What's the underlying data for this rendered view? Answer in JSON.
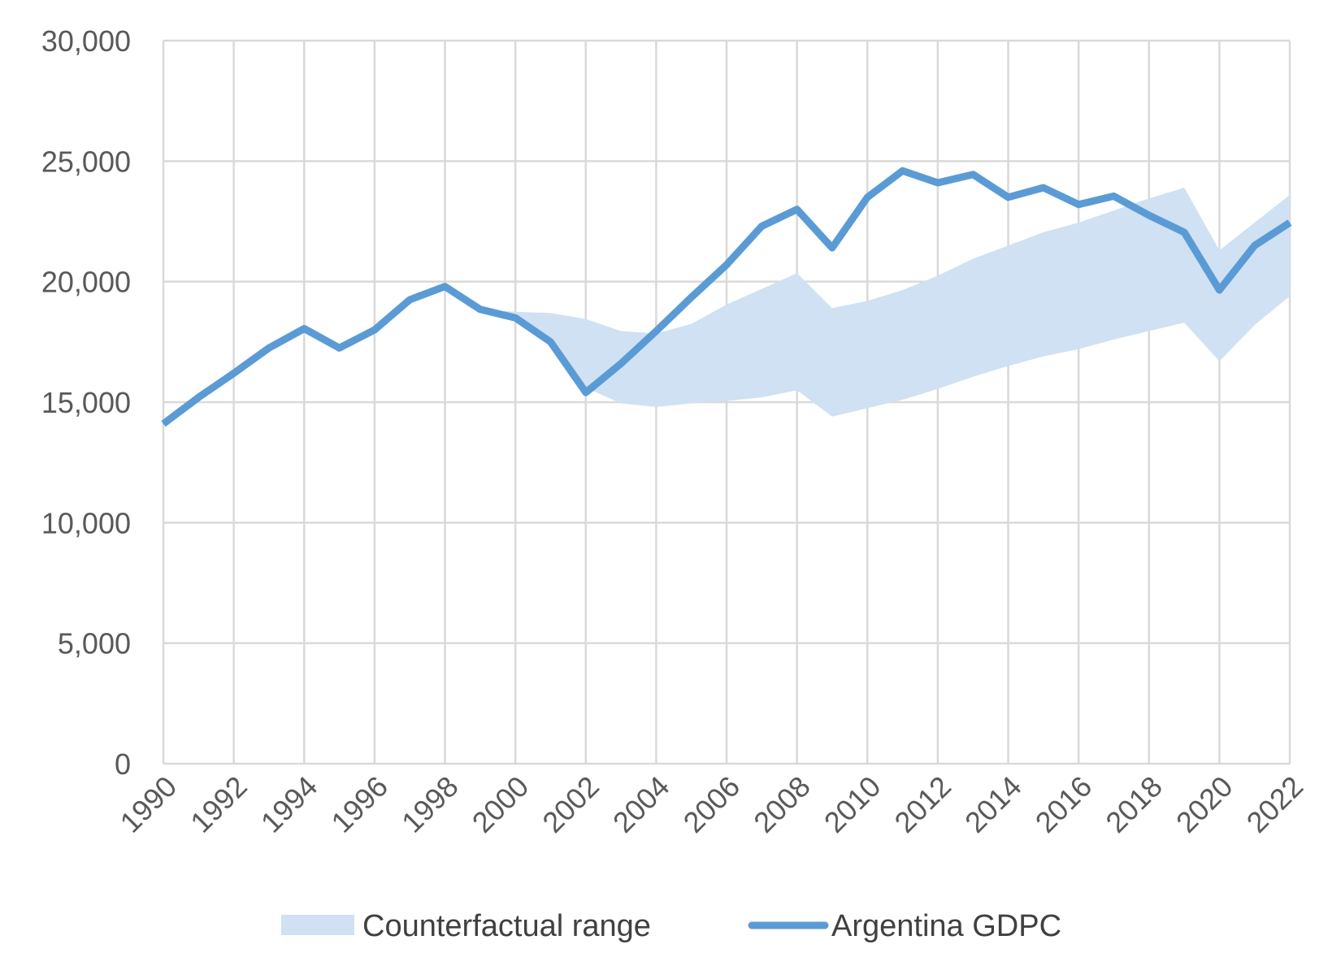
{
  "chart_data": {
    "type": "line",
    "title": "",
    "xlabel": "",
    "ylabel": "",
    "x": [
      1990,
      1991,
      1992,
      1993,
      1994,
      1995,
      1996,
      1997,
      1998,
      1999,
      2000,
      2001,
      2002,
      2003,
      2004,
      2005,
      2006,
      2007,
      2008,
      2009,
      2010,
      2011,
      2012,
      2013,
      2014,
      2015,
      2016,
      2017,
      2018,
      2019,
      2020,
      2021,
      2022
    ],
    "xticks": [
      "1990",
      "1992",
      "1994",
      "1996",
      "1998",
      "2000",
      "2002",
      "2004",
      "2006",
      "2008",
      "2010",
      "2012",
      "2014",
      "2016",
      "2018",
      "2020",
      "2022"
    ],
    "yticks": [
      "0",
      "5,000",
      "10,000",
      "15,000",
      "20,000",
      "25,000",
      "30,000"
    ],
    "ylim": [
      0,
      30000
    ],
    "grid": true,
    "legend_position": "bottom",
    "series": [
      {
        "name": "Argentina GDPC",
        "type": "line",
        "color": "#5b9bd5",
        "values": [
          14100,
          15200,
          16200,
          17250,
          18050,
          17250,
          18000,
          19250,
          19800,
          18850,
          18500,
          17500,
          15400,
          16600,
          17950,
          19350,
          20700,
          22300,
          23000,
          21400,
          23500,
          24600,
          24100,
          24450,
          23500,
          23900,
          23200,
          23550,
          22750,
          22050,
          19650,
          21500,
          22450
        ]
      },
      {
        "name": "Counterfactual range",
        "type": "band",
        "color": "#cfe1f3",
        "x": [
          1999,
          2000,
          2001,
          2002,
          2003,
          2004,
          2005,
          2006,
          2007,
          2008,
          2009,
          2010,
          2011,
          2012,
          2013,
          2014,
          2015,
          2016,
          2017,
          2018,
          2019,
          2020,
          2021,
          2022
        ],
        "lower": [
          18850,
          18500,
          17400,
          15600,
          14950,
          14800,
          14950,
          15050,
          15200,
          15500,
          14400,
          14750,
          15100,
          15550,
          16050,
          16500,
          16900,
          17200,
          17600,
          17950,
          18300,
          16700,
          18200,
          19400
        ],
        "upper": [
          18850,
          18750,
          18700,
          18450,
          17950,
          17850,
          18250,
          19050,
          19700,
          20350,
          18900,
          19200,
          19650,
          20250,
          20950,
          21500,
          22050,
          22450,
          22950,
          23450,
          23900,
          21300,
          22450,
          23600
        ]
      }
    ]
  }
}
